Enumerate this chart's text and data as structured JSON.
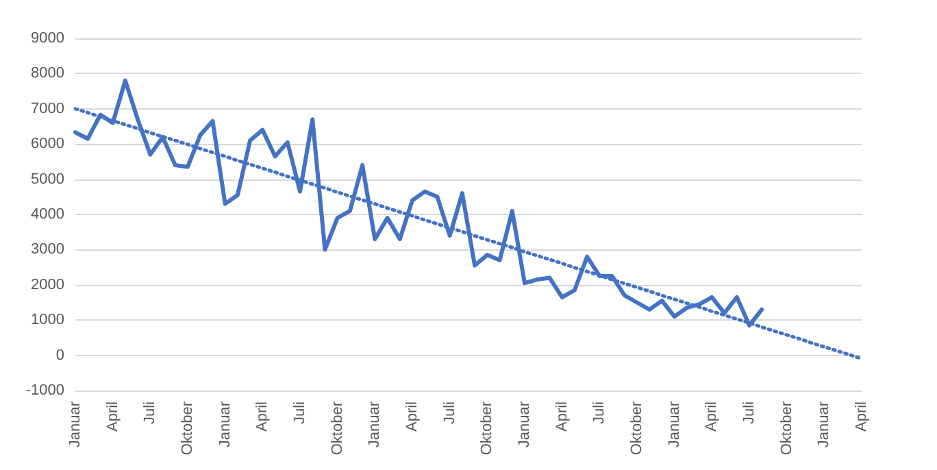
{
  "chart_data": {
    "type": "line",
    "categories": [
      "Januar",
      null,
      null,
      "April",
      null,
      null,
      "Juli",
      null,
      null,
      "Oktober",
      null,
      null,
      "Januar",
      null,
      null,
      "April",
      null,
      null,
      "Juli",
      null,
      null,
      "Oktober",
      null,
      null,
      "Januar",
      null,
      null,
      "April",
      null,
      null,
      "Juli",
      null,
      null,
      "Oktober",
      null,
      null,
      "Januar",
      null,
      null,
      "April",
      null,
      null,
      "Juli",
      null,
      null,
      "Oktober",
      null,
      null,
      "Januar",
      null,
      null,
      "April",
      null,
      null,
      "Juli",
      null,
      null,
      "Oktober",
      null,
      null,
      "Januar",
      null,
      null,
      "April"
    ],
    "series": [
      {
        "color": "#4472c4",
        "line_style": "solid",
        "values": [
          6330,
          6150,
          6830,
          6600,
          7800,
          6700,
          5700,
          6200,
          5400,
          5350,
          6250,
          6650,
          4300,
          4550,
          6100,
          6400,
          5650,
          6050,
          4650,
          6700,
          3000,
          3900,
          4100,
          5400,
          3300,
          3900,
          3300,
          4400,
          4650,
          4500,
          3400,
          4600,
          2550,
          2850,
          2700,
          4100,
          2050,
          2150,
          2200,
          1650,
          1850,
          2800,
          2250,
          2250,
          1700,
          1500,
          1300,
          1550,
          1100,
          1350,
          1450,
          1650,
          1200,
          1650,
          850,
          1300,
          null,
          null,
          null,
          null,
          null,
          null,
          null,
          null
        ]
      },
      {
        "color": "#4472c4",
        "line_style": "dotted",
        "values": [
          7000,
          6890,
          6770,
          6660,
          6550,
          6440,
          6320,
          6210,
          6100,
          5990,
          5870,
          5760,
          5650,
          5530,
          5420,
          5310,
          5200,
          5080,
          4970,
          4860,
          4750,
          4630,
          4520,
          4410,
          4300,
          4180,
          4070,
          3960,
          3840,
          3730,
          3620,
          3510,
          3390,
          3280,
          3170,
          3060,
          2940,
          2830,
          2720,
          2610,
          2490,
          2380,
          2270,
          2150,
          2040,
          1930,
          1820,
          1700,
          1590,
          1480,
          1370,
          1250,
          1140,
          1030,
          920,
          800,
          690,
          580,
          470,
          350,
          240,
          130,
          20,
          -100
        ]
      }
    ],
    "ylim": [
      -1000,
      9000
    ],
    "yticks": [
      -1000,
      0,
      1000,
      2000,
      3000,
      4000,
      5000,
      6000,
      7000,
      8000,
      9000
    ],
    "grid": "y",
    "marker": "none"
  }
}
